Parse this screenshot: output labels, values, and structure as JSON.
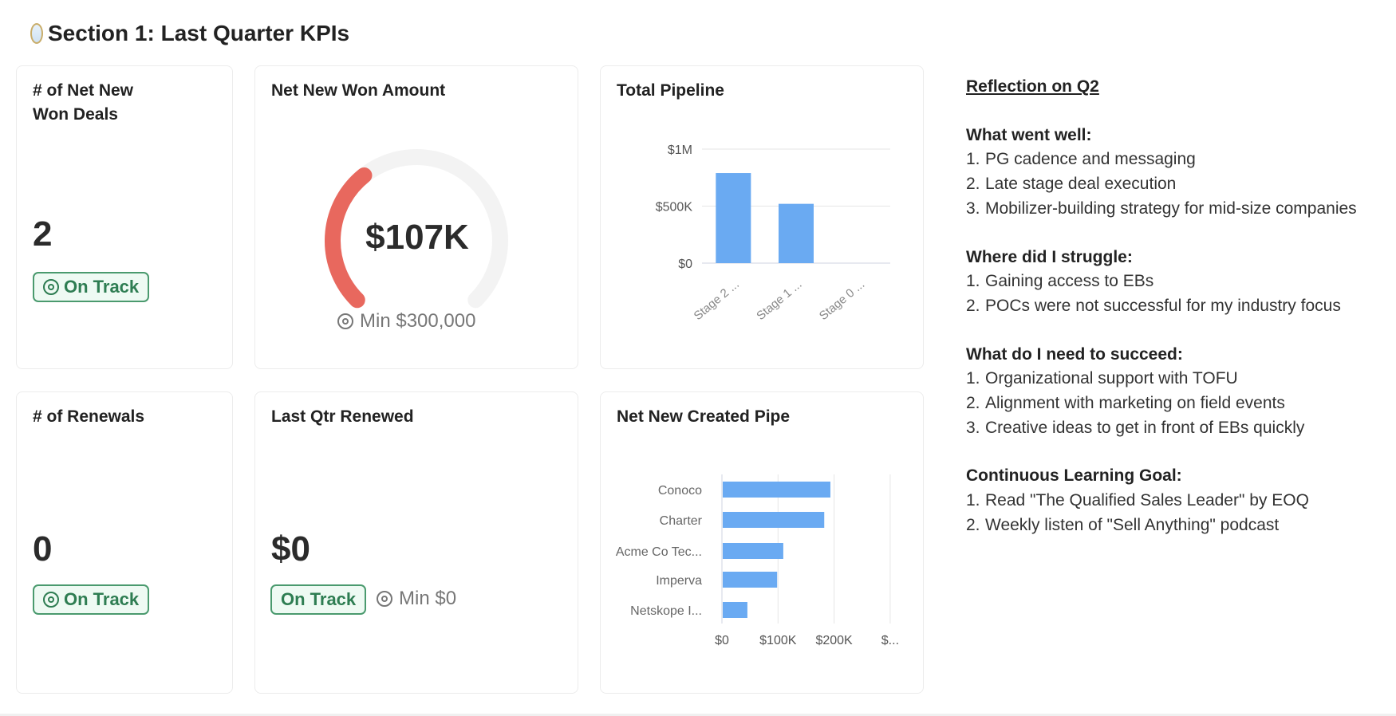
{
  "section_title": "Section 1: Last Quarter KPIs",
  "cards": {
    "net_new_won_deals": {
      "title": "# of Net New Won Deals",
      "value": "2",
      "status": "On Track"
    },
    "net_new_won_amount": {
      "title": "Net New Won Amount",
      "value": "$107K",
      "min": "Min $300,000",
      "progress": 0.357,
      "color": "#e8685e"
    },
    "renewals": {
      "title": "# of Renewals",
      "value": "0",
      "status": "On Track"
    },
    "last_qtr_renewed": {
      "title": "Last Qtr Renewed",
      "value": "$0",
      "status": "On Track",
      "min": "Min $0"
    }
  },
  "chart_data": [
    {
      "type": "bar",
      "title": "Total Pipeline",
      "categories": [
        "Stage 2 ...",
        "Stage 1 ...",
        "Stage 0 ..."
      ],
      "values": [
        790000,
        520000,
        0
      ],
      "yticks": [
        "$0",
        "$500K",
        "$1M"
      ],
      "ylim": [
        0,
        1000000
      ],
      "color": "#6aaaf2",
      "grid": true
    },
    {
      "type": "bar",
      "orientation": "horizontal",
      "title": "Net New Created Pipe",
      "categories": [
        "Conoco",
        "Charter",
        "Acme Co Tec...",
        "Imperva",
        "Netskope I..."
      ],
      "values": [
        192000,
        181000,
        108000,
        97000,
        44000
      ],
      "xticks": [
        "$0",
        "$100K",
        "$200K",
        "$..."
      ],
      "xlim": [
        0,
        300000
      ],
      "color": "#6aaaf2",
      "grid": true
    }
  ],
  "reflection": {
    "title": "Reflection on Q2",
    "sections": [
      {
        "heading": "What went well:",
        "items": [
          "PG cadence and messaging",
          "Late stage deal execution",
          "Mobilizer-building strategy for mid-size companies"
        ]
      },
      {
        "heading": "Where did I struggle:",
        "items": [
          "Gaining access to EBs",
          "POCs were not successful for my industry focus"
        ]
      },
      {
        "heading": "What do I need to succeed:",
        "items": [
          "Organizational support with TOFU",
          "Alignment with marketing on field events",
          "Creative ideas to get in front of EBs quickly"
        ]
      },
      {
        "heading": "Continuous Learning Goal:",
        "items": [
          "Read \"The Qualified Sales Leader\" by EOQ",
          "Weekly listen of \"Sell Anything\" podcast"
        ]
      }
    ]
  }
}
